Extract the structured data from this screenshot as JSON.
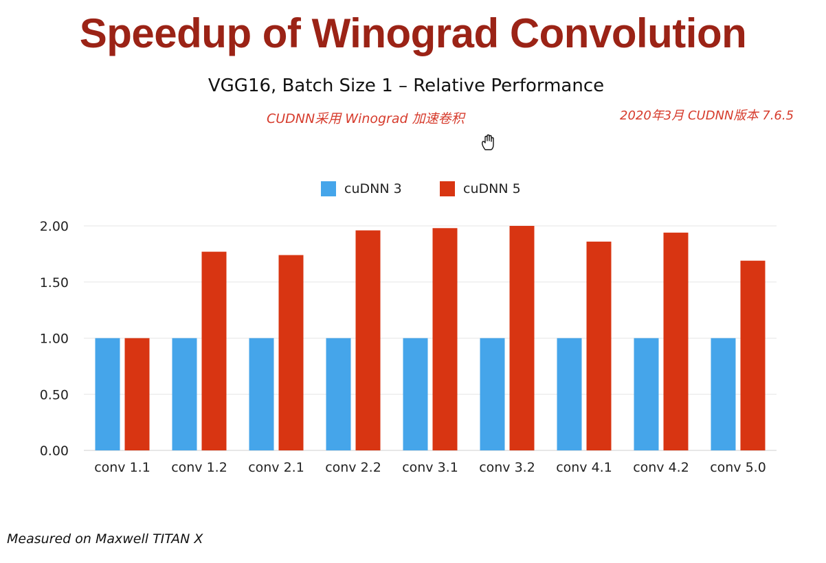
{
  "slide": {
    "title": "Speedup of Winograd Convolution",
    "footnote": "Measured on Maxwell TITAN X",
    "annotations": {
      "left": "CUDNN采用 Winograd 加速卷积",
      "right": "2020年3月 CUDNN版本 7.6.5"
    },
    "cursor_icon": "hand-cursor-icon"
  },
  "chart_data": {
    "type": "bar",
    "title": "VGG16, Batch Size 1 – Relative Performance",
    "categories": [
      "conv 1.1",
      "conv 1.2",
      "conv 2.1",
      "conv 2.2",
      "conv 3.1",
      "conv 3.2",
      "conv 4.1",
      "conv 4.2",
      "conv 5.0"
    ],
    "series": [
      {
        "name": "cuDNN 3",
        "color": "#45a5ea",
        "values": [
          1.0,
          1.0,
          1.0,
          1.0,
          1.0,
          1.0,
          1.0,
          1.0,
          1.0
        ]
      },
      {
        "name": "cuDNN 5",
        "color": "#d83512",
        "values": [
          1.0,
          1.77,
          1.74,
          1.96,
          1.98,
          2.0,
          1.86,
          1.94,
          1.69
        ]
      }
    ],
    "yticks": [
      "0.00",
      "0.50",
      "1.00",
      "1.50",
      "2.00"
    ],
    "ylim": [
      0,
      2.0
    ],
    "grid": true,
    "legend_position": "top-center"
  }
}
